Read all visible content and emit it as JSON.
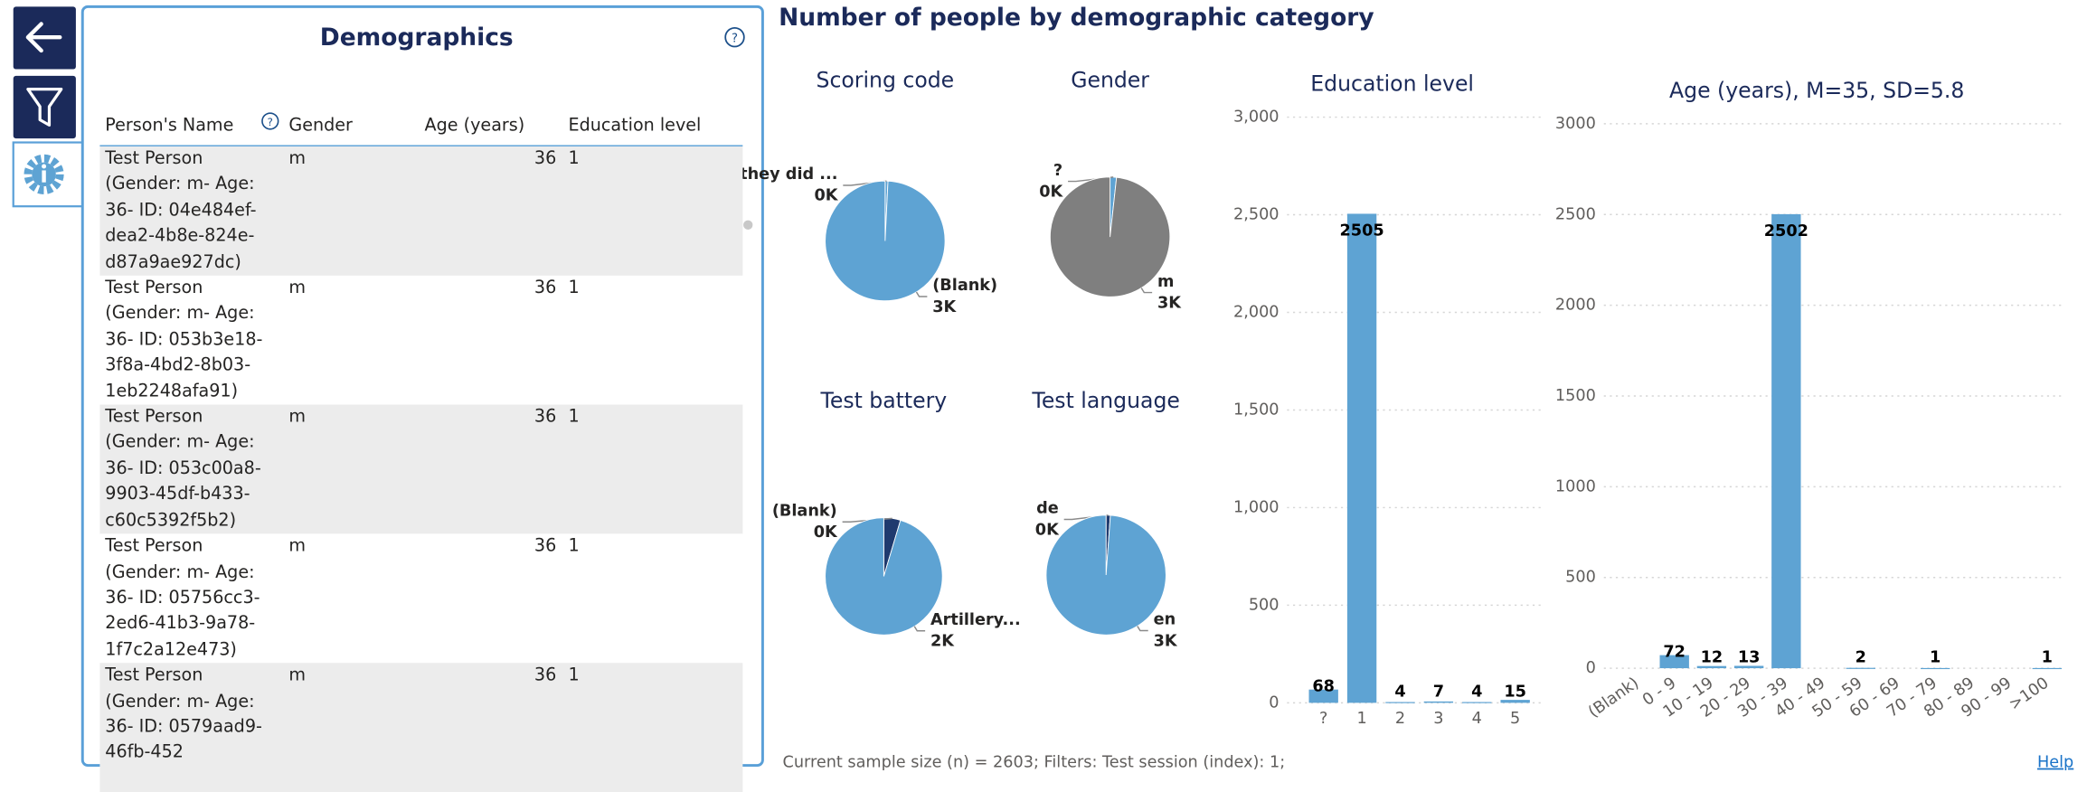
{
  "header": {
    "title": "Number of people by demographic category"
  },
  "panel": {
    "title": "Demographics",
    "columns": [
      "Person's Name",
      "Gender",
      "Age (years)",
      "Education level"
    ],
    "rows": [
      [
        "Test Person (Gender: m- Age: 36- ID: 04e484ef-dea2-4b8e-824e-d87a9ae927dc)",
        "m",
        36,
        1
      ],
      [
        "Test Person (Gender: m- Age: 36- ID: 053b3e18-3f8a-4bd2-8b03-1eb2248afa91)",
        "m",
        36,
        1
      ],
      [
        "Test Person (Gender: m- Age: 36- ID: 053c00a8-9903-45df-b433-c60c5392f5b2)",
        "m",
        36,
        1
      ],
      [
        "Test Person (Gender: m- Age: 36- ID: 05756cc3-2ed6-41b3-9a78-1f7c2a12e473)",
        "m",
        36,
        1
      ],
      [
        "Test Person (Gender: m- Age: 36- ID: 0579aad9-46fb-452",
        "m",
        36,
        1
      ]
    ]
  },
  "footer": {
    "note": "Current sample size (n) = 2603; Filters: Test session (index): 1;",
    "help": "Help"
  },
  "chart_data": [
    {
      "type": "pie",
      "title": "Scoring code",
      "categories": [
        "they did ...",
        "(Blank)"
      ],
      "values": [
        20,
        2583
      ],
      "value_labels": [
        "0K",
        "3K"
      ],
      "colors": [
        "#5ea3d3",
        "#5ea3d3"
      ]
    },
    {
      "type": "pie",
      "title": "Gender",
      "categories": [
        "?",
        "m"
      ],
      "values": [
        45,
        2558
      ],
      "value_labels": [
        "0K",
        "3K"
      ],
      "colors": [
        "#5ea3d3",
        "#7f7f7f"
      ]
    },
    {
      "type": "pie",
      "title": "Test battery",
      "categories": [
        "(Blank)",
        "Artillery..."
      ],
      "values": [
        120,
        2483
      ],
      "value_labels": [
        "0K",
        "2K"
      ],
      "colors": [
        "#1f3a6e",
        "#5ea3d3"
      ]
    },
    {
      "type": "pie",
      "title": "Test language",
      "categories": [
        "de",
        "en"
      ],
      "values": [
        30,
        2573
      ],
      "value_labels": [
        "0K",
        "3K"
      ],
      "colors": [
        "#1f3a6e",
        "#5ea3d3"
      ]
    },
    {
      "type": "bar",
      "title": "Education level",
      "categories": [
        "?",
        "1",
        "2",
        "3",
        "4",
        "5"
      ],
      "values": [
        68,
        2505,
        4,
        7,
        4,
        15
      ],
      "color": "#5ea3d3",
      "ylim": [
        0,
        3000
      ],
      "yticks": [
        0,
        500,
        {
          "value": 1000,
          "label": "1,000"
        },
        {
          "value": 1500,
          "label": "1,500"
        },
        {
          "value": 2000,
          "label": "2,000"
        },
        {
          "value": 2500,
          "label": "2,500"
        },
        {
          "value": 3000,
          "label": "3,000"
        }
      ],
      "grid": true
    },
    {
      "type": "bar",
      "title": "Age (years), M=35, SD=5.8",
      "categories": [
        "(Blank)",
        "0 - 9",
        "10 - 19",
        "20 - 29",
        "30 - 39",
        "40 - 49",
        "50 - 59",
        "60 - 69",
        "70 - 79",
        "80 - 89",
        "90 - 99",
        ">100"
      ],
      "values": [
        null,
        72,
        12,
        13,
        2502,
        null,
        2,
        null,
        1,
        null,
        null,
        1
      ],
      "color": "#5ea3d3",
      "ylim": [
        0,
        3000
      ],
      "yticks": [
        0,
        500,
        1000,
        1500,
        2000,
        2500,
        3000
      ],
      "grid": true
    }
  ]
}
